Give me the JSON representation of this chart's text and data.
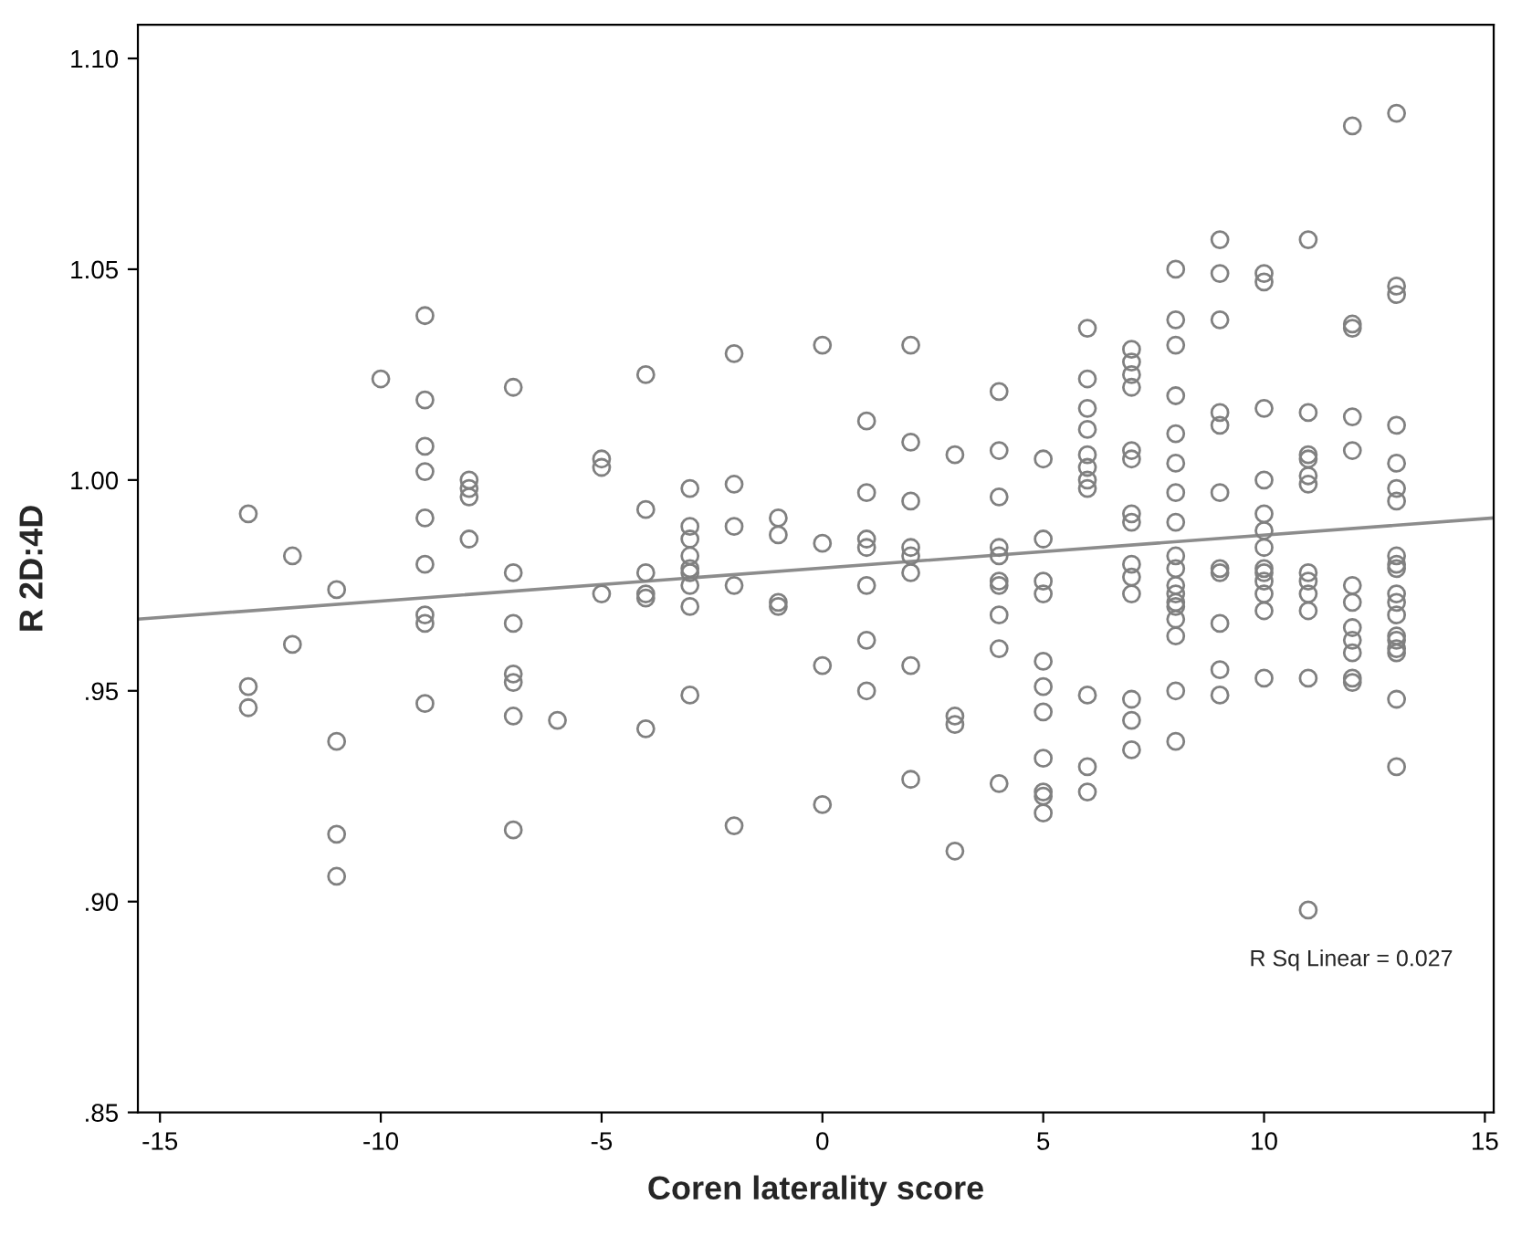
{
  "chart_data": {
    "type": "scatter",
    "xlabel": "Coren laterality score",
    "ylabel": "R 2D:4D",
    "xlim": [
      -15.5,
      15.2
    ],
    "ylim": [
      0.85,
      1.108
    ],
    "xticks": [
      -15,
      -10,
      -5,
      0,
      5,
      10,
      15
    ],
    "yticks": [
      {
        "value": 0.85,
        "label": ".85"
      },
      {
        "value": 0.9,
        "label": ".90"
      },
      {
        "value": 0.95,
        "label": ".95"
      },
      {
        "value": 1.0,
        "label": "1.00"
      },
      {
        "value": 1.05,
        "label": "1.05"
      },
      {
        "value": 1.1,
        "label": "1.10"
      }
    ],
    "grid": false,
    "marker": "circle",
    "annotations": [
      "R Sq Linear = 0.027"
    ],
    "series": [
      {
        "color": "#808080",
        "x": [
          -13,
          -13,
          -13,
          -12,
          -12,
          -11,
          -11,
          -11,
          -11,
          -10,
          -9,
          -9,
          -9,
          -9,
          -9,
          -9,
          -9,
          -9,
          -9,
          -8,
          -8,
          -8,
          -8,
          -7,
          -7,
          -7,
          -7,
          -7,
          -7,
          -7,
          -6,
          -5,
          -5,
          -5,
          -4,
          -4,
          -4,
          -4,
          -4,
          -4,
          -3,
          -3,
          -3,
          -3,
          -3,
          -3,
          -3,
          -3,
          -3,
          -2,
          -2,
          -2,
          -2,
          -2,
          -1,
          -1,
          -1,
          -1,
          0,
          0,
          0,
          0,
          1,
          1,
          1,
          1,
          1,
          1,
          1,
          2,
          2,
          2,
          2,
          2,
          2,
          2,
          2,
          3,
          3,
          3,
          3,
          4,
          4,
          4,
          4,
          4,
          4,
          4,
          4,
          4,
          4,
          5,
          5,
          5,
          5,
          5,
          5,
          5,
          5,
          5,
          5,
          5,
          6,
          6,
          6,
          6,
          6,
          6,
          6,
          6,
          6,
          6,
          6,
          7,
          7,
          7,
          7,
          7,
          7,
          7,
          7,
          7,
          7,
          7,
          7,
          7,
          7,
          8,
          8,
          8,
          8,
          8,
          8,
          8,
          8,
          8,
          8,
          8,
          8,
          8,
          8,
          8,
          8,
          8,
          8,
          9,
          9,
          9,
          9,
          9,
          9,
          9,
          9,
          9,
          9,
          9,
          10,
          10,
          10,
          10,
          10,
          10,
          10,
          10,
          10,
          10,
          10,
          10,
          10,
          11,
          11,
          11,
          11,
          11,
          11,
          11,
          11,
          11,
          11,
          11,
          11,
          12,
          12,
          12,
          12,
          12,
          12,
          12,
          12,
          12,
          12,
          12,
          12,
          13,
          13,
          13,
          13,
          13,
          13,
          13,
          13,
          13,
          13,
          13,
          13,
          13,
          13,
          13,
          13,
          13,
          13,
          13
        ],
        "values": [
          0.992,
          0.951,
          0.946,
          0.982,
          0.961,
          0.974,
          0.938,
          0.916,
          0.906,
          1.024,
          1.039,
          1.019,
          1.008,
          1.002,
          0.991,
          0.98,
          0.968,
          0.966,
          0.947,
          1.0,
          0.998,
          0.996,
          0.986,
          1.022,
          0.978,
          0.966,
          0.954,
          0.952,
          0.944,
          0.917,
          0.943,
          1.005,
          1.003,
          0.973,
          1.025,
          0.993,
          0.978,
          0.973,
          0.972,
          0.941,
          0.998,
          0.989,
          0.986,
          0.982,
          0.979,
          0.978,
          0.975,
          0.97,
          0.949,
          1.03,
          0.999,
          0.989,
          0.975,
          0.918,
          0.991,
          0.987,
          0.971,
          0.97,
          1.032,
          0.985,
          0.956,
          0.923,
          1.014,
          0.997,
          0.986,
          0.984,
          0.975,
          0.962,
          0.95,
          1.032,
          1.009,
          0.995,
          0.984,
          0.982,
          0.978,
          0.956,
          0.929,
          1.006,
          0.944,
          0.942,
          0.912,
          1.021,
          1.007,
          0.996,
          0.984,
          0.982,
          0.976,
          0.975,
          0.968,
          0.96,
          0.928,
          1.005,
          0.986,
          0.976,
          0.973,
          0.957,
          0.951,
          0.945,
          0.934,
          0.926,
          0.925,
          0.921,
          1.036,
          1.024,
          1.017,
          1.012,
          1.006,
          1.003,
          1.0,
          0.998,
          0.949,
          0.932,
          0.926,
          1.031,
          1.028,
          1.025,
          1.022,
          1.007,
          1.005,
          0.992,
          0.99,
          0.98,
          0.977,
          0.973,
          0.948,
          0.943,
          0.936,
          1.05,
          1.038,
          1.032,
          1.02,
          1.011,
          1.004,
          0.997,
          0.99,
          0.982,
          0.979,
          0.975,
          0.973,
          0.971,
          0.97,
          0.967,
          0.963,
          0.95,
          0.938,
          1.057,
          1.049,
          1.038,
          1.016,
          1.013,
          0.997,
          0.979,
          0.978,
          0.966,
          0.955,
          0.949,
          1.049,
          1.047,
          1.017,
          1.0,
          0.992,
          0.988,
          0.984,
          0.979,
          0.978,
          0.976,
          0.973,
          0.969,
          0.953,
          1.057,
          1.016,
          1.006,
          1.005,
          1.001,
          0.999,
          0.978,
          0.976,
          0.973,
          0.969,
          0.953,
          0.898,
          1.084,
          1.037,
          1.036,
          1.015,
          1.007,
          0.975,
          0.971,
          0.965,
          0.962,
          0.959,
          0.953,
          0.952,
          1.087,
          1.046,
          1.044,
          1.013,
          1.004,
          0.998,
          0.995,
          0.982,
          0.98,
          0.979,
          0.973,
          0.971,
          0.968,
          0.963,
          0.962,
          0.96,
          0.959,
          0.948,
          0.932
        ]
      },
      {
        "type": "line",
        "color": "#8c8c8c",
        "marker": "none",
        "line_style": "solid",
        "x": [
          -15.5,
          15.2
        ],
        "values": [
          0.967,
          0.991
        ]
      }
    ]
  }
}
